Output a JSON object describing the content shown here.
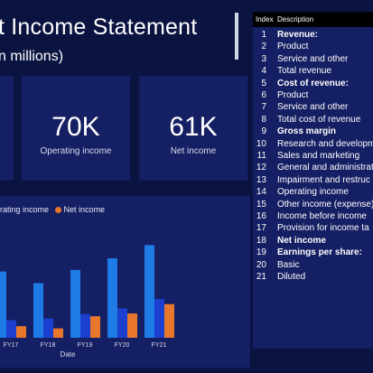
{
  "header": {
    "title": "t Income Statement",
    "subtitle": "n millions)"
  },
  "cards": [
    {
      "value": "70K",
      "label": "Operating income"
    },
    {
      "value": "61K",
      "label": "Net income"
    }
  ],
  "legend": {
    "item1": "rating income",
    "item2": "Net income"
  },
  "colors": {
    "background": "#0b1340",
    "panel": "#151f63",
    "bar_primary": "#1e7be6",
    "bar_secondary": "#1c3fd0",
    "bar_accent": "#e8762c"
  },
  "chart_data": {
    "type": "bar",
    "categories": [
      "FY17",
      "FY18",
      "FY19",
      "FY20",
      "FY21"
    ],
    "xlabel": "Date",
    "series": [
      {
        "name": "",
        "values": [
          120,
          99,
          123,
          144,
          168
        ]
      },
      {
        "name": "rating income",
        "values": [
          32,
          35,
          43,
          53,
          70
        ]
      },
      {
        "name": "Net income",
        "values": [
          21,
          17,
          39,
          44,
          61
        ]
      }
    ],
    "ylim": [
      0,
      180
    ]
  },
  "table": {
    "headers": [
      "Index",
      "Description"
    ],
    "rows": [
      {
        "index": "1",
        "description": "Revenue:",
        "bold": true
      },
      {
        "index": "2",
        "description": "Product",
        "bold": false
      },
      {
        "index": "3",
        "description": "Service and other",
        "bold": false
      },
      {
        "index": "4",
        "description": "Total revenue",
        "bold": false
      },
      {
        "index": "5",
        "description": "Cost of revenue:",
        "bold": true
      },
      {
        "index": "6",
        "description": "Product",
        "bold": false
      },
      {
        "index": "7",
        "description": "Service and other",
        "bold": false
      },
      {
        "index": "8",
        "description": "Total cost of revenue",
        "bold": false
      },
      {
        "index": "9",
        "description": "Gross margin",
        "bold": true
      },
      {
        "index": "10",
        "description": "Research and developm",
        "bold": false
      },
      {
        "index": "11",
        "description": "Sales and marketing",
        "bold": false
      },
      {
        "index": "12",
        "description": "General and administrat",
        "bold": false
      },
      {
        "index": "13",
        "description": "Impairment and restruc",
        "bold": false
      },
      {
        "index": "14",
        "description": "Operating income",
        "bold": false
      },
      {
        "index": "15",
        "description": "Other income (expense)",
        "bold": false
      },
      {
        "index": "16",
        "description": "Income before income",
        "bold": false
      },
      {
        "index": "17",
        "description": "Provision for income ta",
        "bold": false
      },
      {
        "index": "18",
        "description": "Net income",
        "bold": true
      },
      {
        "index": "19",
        "description": "Earnings per share:",
        "bold": true
      },
      {
        "index": "20",
        "description": "Basic",
        "bold": false
      },
      {
        "index": "21",
        "description": "Diluted",
        "bold": false
      }
    ]
  }
}
